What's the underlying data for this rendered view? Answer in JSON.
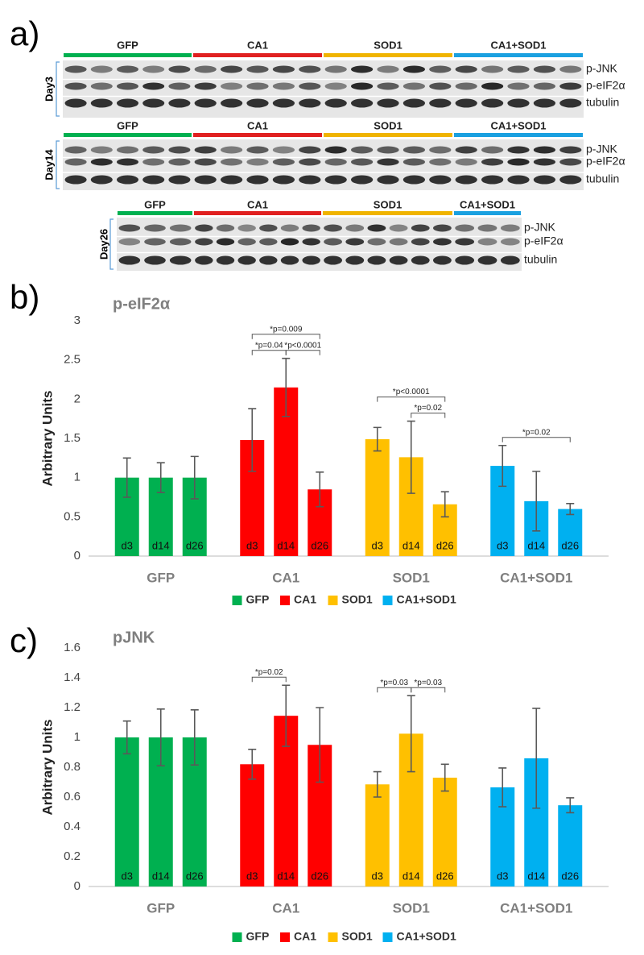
{
  "panel_labels": [
    "a)",
    "b)",
    "c)"
  ],
  "blots": [
    {
      "day": "Day3",
      "groups": [
        {
          "name": "GFP",
          "color": "#00b050"
        },
        {
          "name": "CA1",
          "color": "#e02020"
        },
        {
          "name": "SOD1",
          "color": "#f0b400"
        },
        {
          "name": "CA1+SOD1",
          "color": "#1aa0e0"
        }
      ],
      "bands": [
        "p-JNK",
        "p-eIF2α",
        "tubulin"
      ]
    },
    {
      "day": "Day14",
      "groups": [
        {
          "name": "GFP",
          "color": "#00b050"
        },
        {
          "name": "CA1",
          "color": "#e02020"
        },
        {
          "name": "SOD1",
          "color": "#f0b400"
        },
        {
          "name": "CA1+SOD1",
          "color": "#1aa0e0"
        }
      ],
      "bands": [
        "p-JNK",
        "p-eIF2α",
        "tubulin"
      ]
    },
    {
      "day": "Day26",
      "groups": [
        {
          "name": "GFP",
          "color": "#00b050"
        },
        {
          "name": "CA1",
          "color": "#e02020"
        },
        {
          "name": "SOD1",
          "color": "#f0b400"
        },
        {
          "name": "CA1+SOD1",
          "color": "#1aa0e0"
        }
      ],
      "bands": [
        "p-JNK",
        "p-eIF2α",
        "tubulin"
      ]
    }
  ],
  "chart_data": [
    {
      "type": "bar",
      "title": "p-eIF2α",
      "ylabel": "Arbitrary Units",
      "categories": [
        "GFP",
        "CA1",
        "SOD1",
        "CA1+SOD1"
      ],
      "x": [
        "d3",
        "d14",
        "d26"
      ],
      "ylim": [
        0,
        3
      ],
      "yticks": [
        0,
        0.5,
        1,
        1.5,
        2,
        2.5,
        3
      ],
      "grid": false,
      "series": [
        {
          "name": "GFP",
          "color": "#00b050",
          "values": [
            1,
            1,
            1
          ],
          "errors": [
            0.25,
            0.19,
            0.27
          ]
        },
        {
          "name": "CA1",
          "color": "#ff0000",
          "values": [
            1.48,
            2.15,
            0.85
          ],
          "errors": [
            0.4,
            0.37,
            0.22
          ]
        },
        {
          "name": "SOD1",
          "color": "#ffc000",
          "values": [
            1.49,
            1.26,
            0.66
          ],
          "errors": [
            0.15,
            0.46,
            0.16
          ]
        },
        {
          "name": "CA1+SOD1",
          "color": "#00b0f0",
          "values": [
            1.15,
            0.7,
            0.6
          ],
          "errors": [
            0.26,
            0.38,
            0.07
          ]
        }
      ],
      "annotations": [
        {
          "group": "CA1",
          "between": [
            "d3",
            "d14"
          ],
          "text": "*p=0.04"
        },
        {
          "group": "CA1",
          "between": [
            "d14",
            "d26"
          ],
          "text": "*p<0.0001"
        },
        {
          "group": "CA1",
          "between": [
            "d3",
            "d26"
          ],
          "text": "*p=0.009"
        },
        {
          "group": "SOD1",
          "between": [
            "d14",
            "d26"
          ],
          "text": "*p=0.02"
        },
        {
          "group": "SOD1",
          "between": [
            "d3",
            "d26"
          ],
          "text": "*p<0.0001"
        },
        {
          "group": "CA1+SOD1",
          "between": [
            "d3",
            "d26"
          ],
          "text": "*p=0.02"
        }
      ]
    },
    {
      "type": "bar",
      "title": "pJNK",
      "ylabel": "Arbitrary Units",
      "categories": [
        "GFP",
        "CA1",
        "SOD1",
        "CA1+SOD1"
      ],
      "x": [
        "d3",
        "d14",
        "d26"
      ],
      "ylim": [
        0,
        1.6
      ],
      "yticks": [
        0,
        0.2,
        0.4,
        0.6,
        0.8,
        1,
        1.2,
        1.4,
        1.6
      ],
      "grid": false,
      "series": [
        {
          "name": "GFP",
          "color": "#00b050",
          "values": [
            1,
            1,
            1
          ],
          "errors": [
            0.11,
            0.19,
            0.185
          ]
        },
        {
          "name": "CA1",
          "color": "#ff0000",
          "values": [
            0.82,
            1.145,
            0.95
          ],
          "errors": [
            0.1,
            0.205,
            0.25
          ]
        },
        {
          "name": "SOD1",
          "color": "#ffc000",
          "values": [
            0.685,
            1.025,
            0.73
          ],
          "errors": [
            0.085,
            0.255,
            0.09
          ]
        },
        {
          "name": "CA1+SOD1",
          "color": "#00b0f0",
          "values": [
            0.665,
            0.86,
            0.545
          ],
          "errors": [
            0.13,
            0.335,
            0.05
          ]
        }
      ],
      "annotations": [
        {
          "group": "CA1",
          "between": [
            "d3",
            "d14"
          ],
          "text": "*p=0.02"
        },
        {
          "group": "SOD1",
          "between": [
            "d3",
            "d14"
          ],
          "text": "*p=0.03"
        },
        {
          "group": "SOD1",
          "between": [
            "d14",
            "d26"
          ],
          "text": "*p=0.03"
        }
      ]
    }
  ]
}
